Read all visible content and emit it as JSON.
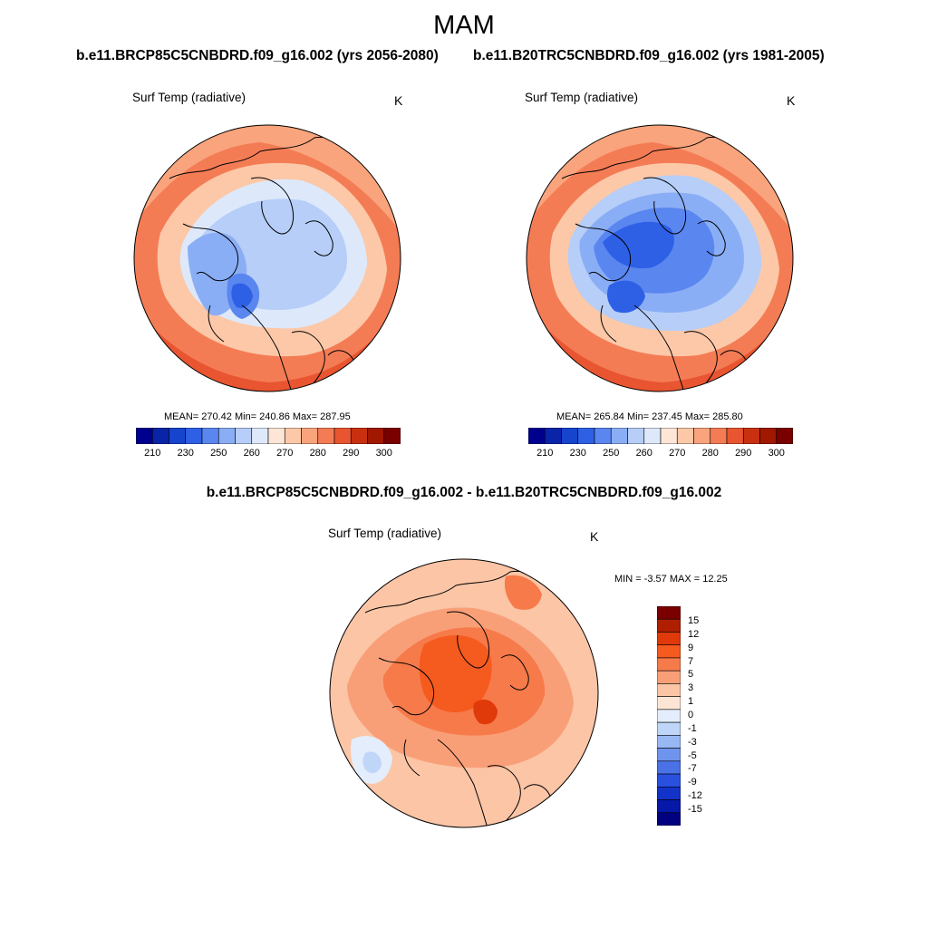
{
  "title": "MAM",
  "panels": [
    {
      "case": "b.e11.BRCP85C5CNBDRD.f09_g16.002 (yrs 2056-2080)",
      "variable": "Surf Temp (radiative)",
      "units": "K",
      "stats": "MEAN= 270.42  Min= 240.86  Max= 287.95"
    },
    {
      "case": "b.e11.B20TRC5CNBDRD.f09_g16.002 (yrs 1981-2005)",
      "variable": "Surf Temp (radiative)",
      "units": "K",
      "stats": "MEAN= 265.84  Min= 237.45  Max= 285.80"
    }
  ],
  "difference": {
    "title": "b.e11.BRCP85C5CNBDRD.f09_g16.002 - b.e11.B20TRC5CNBDRD.f09_g16.002",
    "variable": "Surf Temp (radiative)",
    "units": "K",
    "stats": "MIN =  -3.57 MAX =  12.25"
  },
  "colorbar_abs": {
    "colors": [
      "#00008f",
      "#0a24a8",
      "#1744cc",
      "#2e60e6",
      "#5a86f0",
      "#8aaef5",
      "#b6cef8",
      "#dde9fb",
      "#fde6d6",
      "#fcc8a8",
      "#f9a47c",
      "#f47c55",
      "#e85530",
      "#c83010",
      "#a01800",
      "#7a0000"
    ],
    "labels": [
      "210",
      "230",
      "250",
      "260",
      "270",
      "280",
      "290",
      "300"
    ]
  },
  "colorbar_diff": {
    "colors": [
      "#7a0000",
      "#b01e00",
      "#e03a0a",
      "#f55a1e",
      "#f77a4a",
      "#f99f78",
      "#fbc5a6",
      "#fde5d6",
      "#e3edfb",
      "#c0d6f8",
      "#98b8f4",
      "#6f94ee",
      "#4a72e6",
      "#2a50de",
      "#1232c8",
      "#0618a8",
      "#000080"
    ],
    "labels": [
      "15",
      "12",
      "9",
      "7",
      "5",
      "3",
      "1",
      "0",
      "-1",
      "-3",
      "-5",
      "-7",
      "-9",
      "-12",
      "-15"
    ]
  }
}
